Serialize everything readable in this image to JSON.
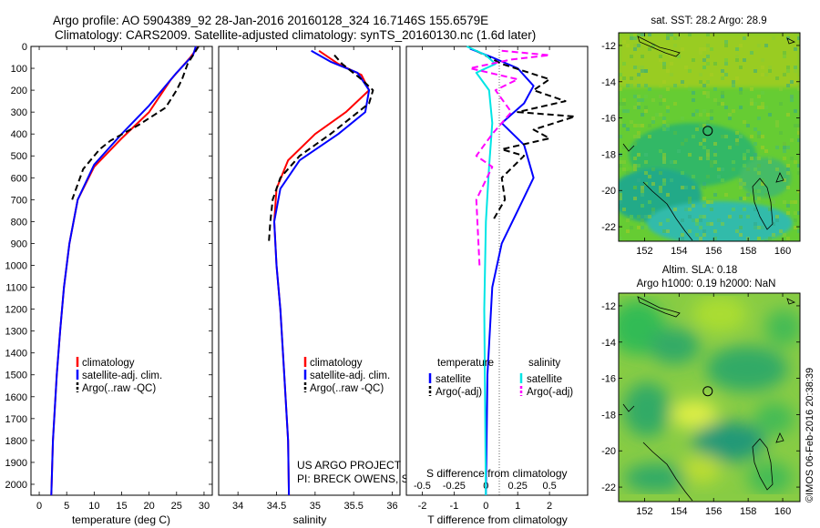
{
  "header": {
    "line1": "Argo profile: AO 5904389_92 28-Jan-2016 20160128_324 16.7146S 155.6579E",
    "line2": "Climatology: CARS2009. Satellite-adjusted climatology: synTS_20160130.nc (1.6d later)"
  },
  "credits": {
    "project": "US ARGO PROJECT",
    "pis": "PI: BRECK OWENS, STEVE JAYNE, P.E. ROBBINS"
  },
  "watermark": "©IMOS 06-Feb-2016 20:38:39",
  "colors": {
    "climatology": "#ff0000",
    "satellite": "#0000ff",
    "argo": "#000000",
    "sal_satellite": "#00e5e5",
    "sal_argo": "#ff00ff"
  },
  "chart_data": [
    {
      "type": "line",
      "xlabel": "temperature (deg C)",
      "ylabel": "",
      "xlim": [
        -1.5,
        31.5
      ],
      "ylim": [
        2050,
        0
      ],
      "xticks": [
        0,
        5,
        10,
        15,
        20,
        25,
        30
      ],
      "yticks": [
        0,
        100,
        200,
        300,
        400,
        500,
        600,
        700,
        800,
        900,
        1000,
        1100,
        1200,
        1300,
        1400,
        1500,
        1600,
        1700,
        1800,
        1900,
        2000
      ],
      "legend_placement": "bottom-center",
      "series": [
        {
          "name": "climatology",
          "style": "solid",
          "color": "#ff0000",
          "x": [
            29,
            27.5,
            24,
            20,
            15,
            10,
            7,
            5.5,
            4.5,
            3.8,
            3.2,
            2.5,
            2.2
          ],
          "y": [
            0,
            50,
            150,
            300,
            420,
            550,
            700,
            900,
            1100,
            1300,
            1500,
            1800,
            2050
          ]
        },
        {
          "name": "satellite-adj. clim.",
          "style": "solid",
          "color": "#0000ff",
          "x": [
            28.5,
            28,
            25,
            20,
            15,
            10,
            7,
            5.5,
            4.5,
            3.8,
            3.2,
            2.5,
            2.2
          ],
          "y": [
            0,
            40,
            120,
            270,
            400,
            540,
            700,
            900,
            1100,
            1300,
            1500,
            1800,
            2050
          ]
        },
        {
          "name": "Argo(..raw -QC)",
          "style": "dashed",
          "color": "#000000",
          "x": [
            29,
            27,
            26,
            25,
            23,
            18,
            13,
            11,
            8,
            6
          ],
          "y": [
            0,
            80,
            150,
            200,
            280,
            360,
            430,
            470,
            560,
            700
          ]
        }
      ]
    },
    {
      "type": "line",
      "xlabel": "salinity",
      "ylabel": "",
      "xlim": [
        33.75,
        36.1
      ],
      "ylim": [
        2050,
        0
      ],
      "xticks": [
        34,
        34.5,
        35,
        35.5,
        36
      ],
      "legend_placement": "bottom-center",
      "series": [
        {
          "name": "climatology",
          "style": "solid",
          "color": "#ff0000",
          "x": [
            35.05,
            35.3,
            35.6,
            35.7,
            35.4,
            35.0,
            34.65,
            34.5,
            34.47,
            34.5,
            34.55,
            34.6,
            34.65,
            34.66
          ],
          "y": [
            20,
            80,
            130,
            200,
            300,
            400,
            520,
            650,
            800,
            1000,
            1200,
            1500,
            1800,
            2050
          ]
        },
        {
          "name": "satellite-adj. clim.",
          "style": "solid",
          "color": "#0000ff",
          "x": [
            34.95,
            35.2,
            35.55,
            35.7,
            35.65,
            35.3,
            34.8,
            34.55,
            34.47,
            34.5,
            34.55,
            34.6,
            34.65,
            34.66
          ],
          "y": [
            20,
            70,
            120,
            200,
            300,
            400,
            520,
            650,
            800,
            1000,
            1200,
            1500,
            1800,
            2050
          ]
        },
        {
          "name": "Argo(..raw -QC)",
          "style": "dashed",
          "color": "#000000",
          "x": [
            35.25,
            35.35,
            35.6,
            35.75,
            35.7,
            35.2,
            34.8,
            34.55,
            34.45,
            34.42,
            34.4
          ],
          "y": [
            40,
            80,
            150,
            200,
            260,
            400,
            500,
            600,
            700,
            800,
            900
          ]
        }
      ]
    },
    {
      "type": "line",
      "xlabel": "T difference from climatology",
      "ylabel": "",
      "annotation": "S difference from climatology",
      "xlim": [
        -2.5,
        3.2
      ],
      "ylim": [
        2050,
        0
      ],
      "xticks": [
        -2,
        -1,
        0,
        1,
        2
      ],
      "secondary_xticks": [
        "-0.5",
        "-0.25",
        "0",
        "0.25",
        "0.5"
      ],
      "legend_placement": "bottom-center",
      "legend_titles": [
        "temperature",
        "salinity"
      ],
      "series": [
        {
          "name": "satellite",
          "group": "temperature",
          "style": "solid",
          "color": "#0000ff",
          "x": [
            -0.5,
            0.2,
            1.0,
            1.5,
            1.2,
            0.5,
            1.2,
            1.5,
            1.0,
            0.5,
            0.2,
            0.05,
            0
          ],
          "y": [
            10,
            50,
            100,
            180,
            260,
            350,
            450,
            600,
            750,
            900,
            1100,
            1500,
            2050
          ]
        },
        {
          "name": "Argo(-adj)",
          "group": "temperature",
          "style": "dashed",
          "color": "#000000",
          "x": [
            -0.3,
            0.5,
            2.0,
            1.5,
            2.5,
            1.0,
            2.8,
            1.5,
            2.0,
            0.5,
            1.2,
            0.5,
            0.6,
            0.2
          ],
          "y": [
            20,
            80,
            150,
            200,
            250,
            300,
            320,
            380,
            420,
            470,
            500,
            600,
            700,
            800
          ]
        },
        {
          "name": "satellite",
          "group": "salinity",
          "style": "solid",
          "color": "#00e5e5",
          "x": [
            -0.6,
            0,
            0.3,
            -0.3,
            0.1,
            0.2,
            0.1,
            0,
            -0.05,
            0
          ],
          "y": [
            0,
            40,
            80,
            120,
            200,
            350,
            550,
            800,
            1200,
            2050
          ]
        },
        {
          "name": "Argo(-adj)",
          "group": "salinity",
          "style": "dashed",
          "color": "#ff00ff",
          "x": [
            0.5,
            2.0,
            0.8,
            -0.5,
            1.0,
            0.3,
            0.8,
            0.2,
            -0.3,
            0.2,
            -0.3,
            -0.2
          ],
          "y": [
            20,
            40,
            60,
            100,
            150,
            200,
            300,
            400,
            500,
            550,
            700,
            1000
          ]
        }
      ]
    },
    {
      "type": "heatmap",
      "title": "sat. SST: 28.2 Argo: 28.9",
      "xlim": [
        150.5,
        161
      ],
      "ylim": [
        -22.8,
        -11.3
      ],
      "xticks": [
        152,
        154,
        156,
        158,
        160
      ],
      "yticks": [
        -12,
        -14,
        -16,
        -18,
        -20,
        -22
      ],
      "marker": {
        "lon": 155.66,
        "lat": -16.71
      }
    },
    {
      "type": "heatmap",
      "title": "Altim. SLA: 0.18",
      "subtitle": "Argo h1000: 0.19 h2000: NaN",
      "xlim": [
        150.5,
        161
      ],
      "ylim": [
        -22.8,
        -11.3
      ],
      "xticks": [
        152,
        154,
        156,
        158,
        160
      ],
      "yticks": [
        -12,
        -14,
        -16,
        -18,
        -20,
        -22
      ],
      "marker": {
        "lon": 155.66,
        "lat": -16.71
      }
    }
  ]
}
